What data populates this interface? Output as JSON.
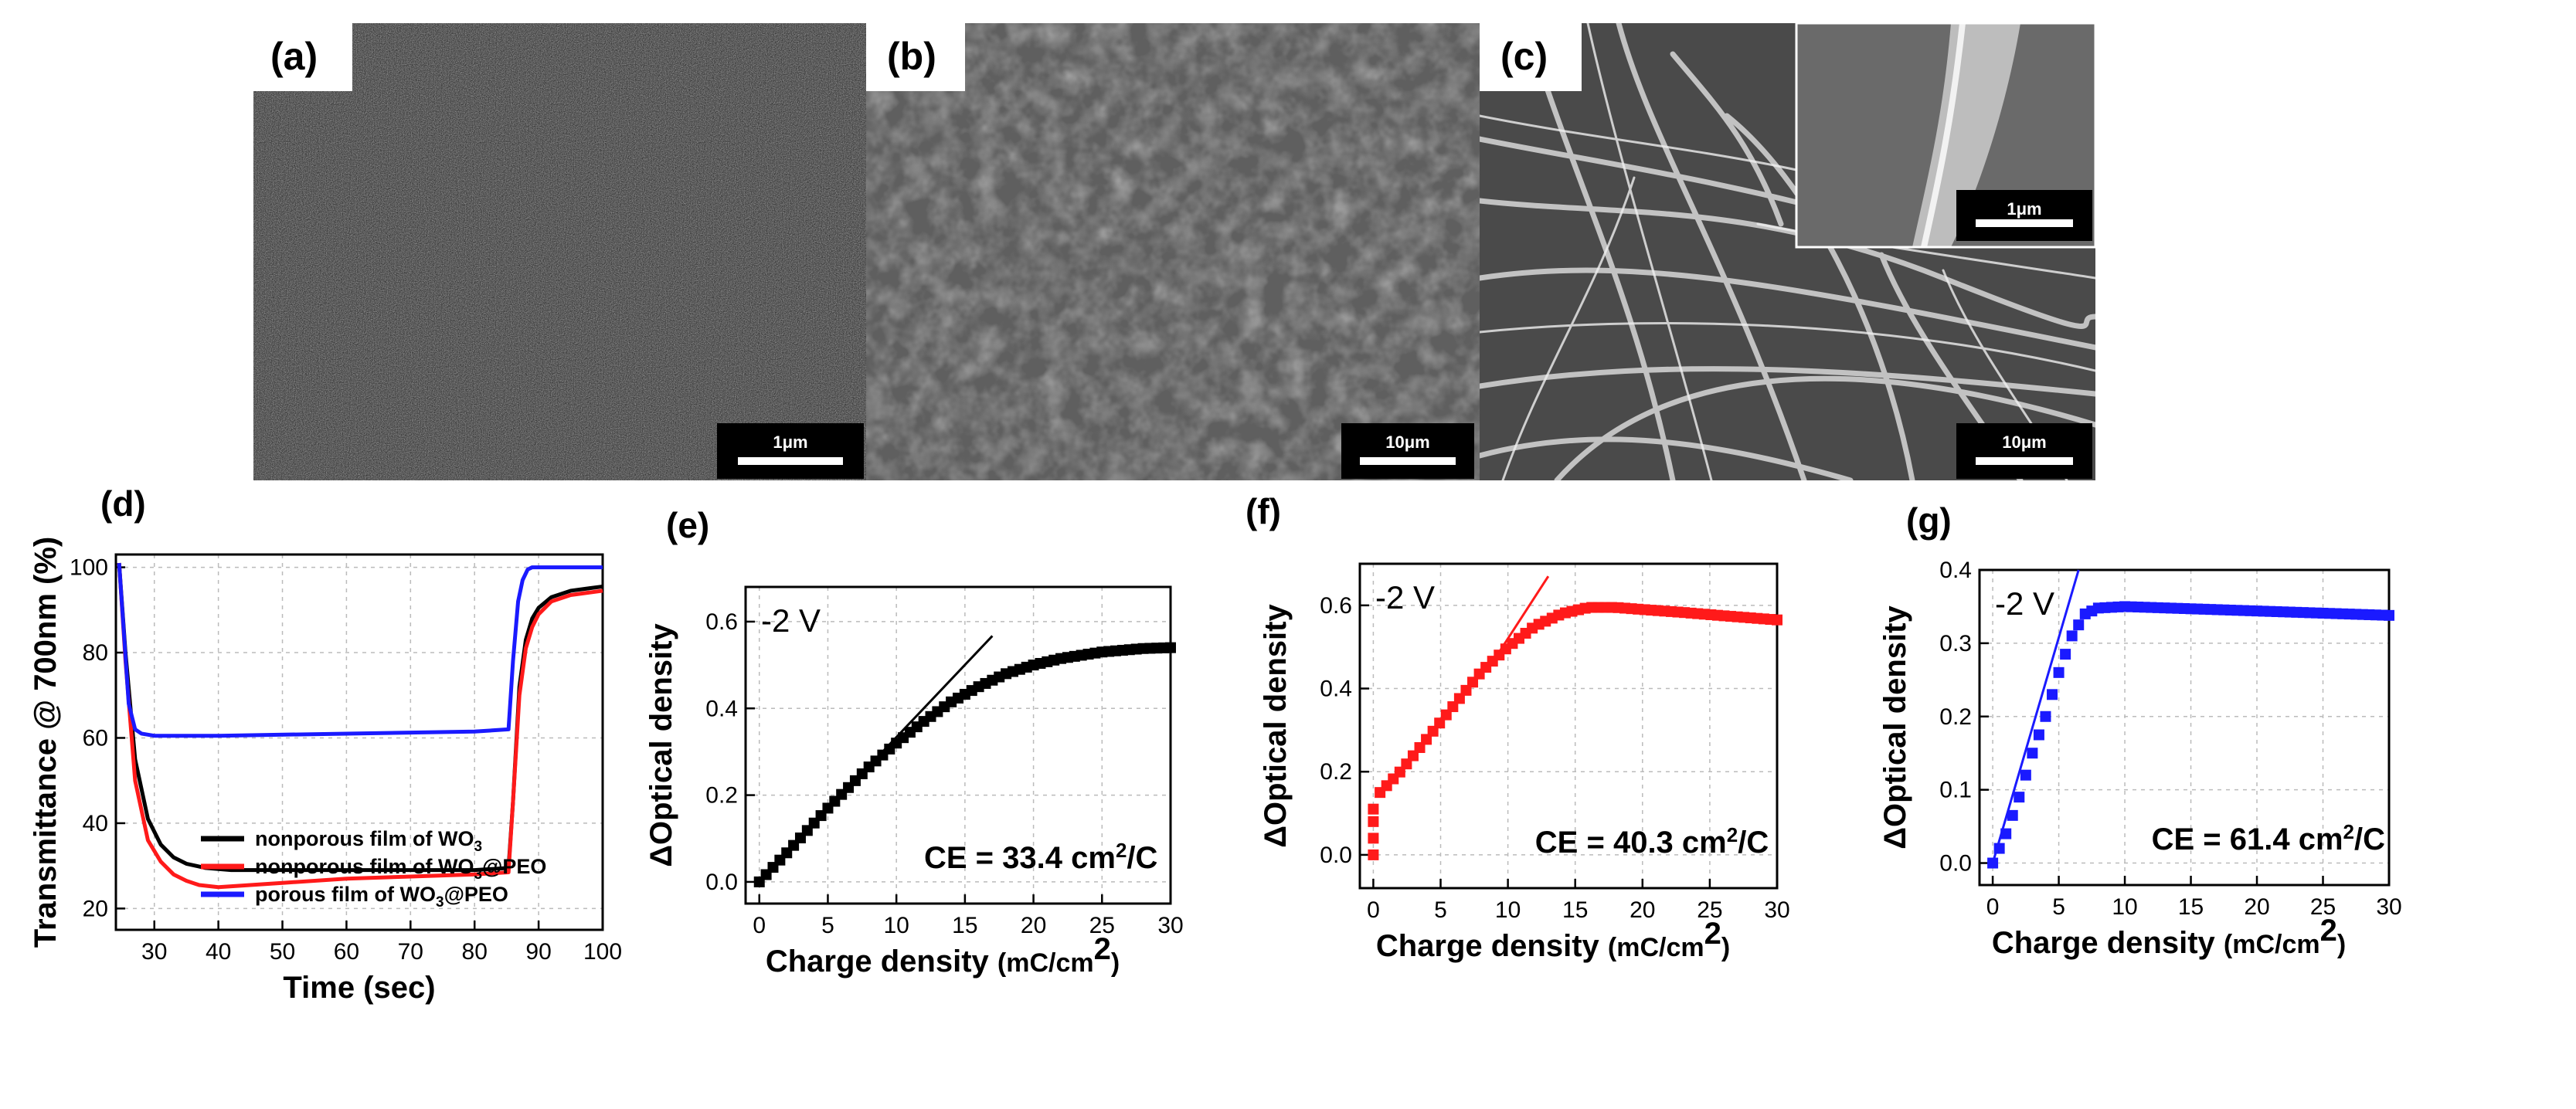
{
  "panels": {
    "a": {
      "label": "(a)",
      "scale": "1μm"
    },
    "b": {
      "label": "(b)",
      "scale": "10μm"
    },
    "c": {
      "label": "(c)",
      "scale": "10μm",
      "inset_scale": "1μm"
    }
  },
  "chart_data": [
    {
      "id": "d",
      "panel_label": "(d)",
      "type": "line",
      "xlabel": "Time (sec)",
      "ylabel": "Transmittance @ 700nm (%)",
      "xlim": [
        24,
        100
      ],
      "ylim": [
        15,
        103
      ],
      "xticks": [
        30,
        40,
        50,
        60,
        70,
        80,
        90,
        100
      ],
      "yticks": [
        20,
        40,
        60,
        80,
        100
      ],
      "grid": true,
      "legend_position": "bottom-center",
      "series": [
        {
          "name": "nonporous film of WO3",
          "color": "#000000",
          "x": [
            24.5,
            25.5,
            27,
            29,
            31,
            33,
            35,
            38,
            42,
            50,
            60,
            70,
            80,
            85.3,
            86,
            87,
            88,
            89,
            90,
            92,
            95,
            100
          ],
          "y": [
            101,
            80,
            55,
            41,
            35,
            32,
            30.5,
            29.5,
            29,
            29,
            29,
            29,
            29,
            29.5,
            45,
            72,
            83,
            88,
            90.5,
            93,
            94.5,
            95.5
          ]
        },
        {
          "name": "nonporous film of WO3@PEO",
          "color": "#ff1a1a",
          "x": [
            24.5,
            25.5,
            27,
            29,
            31,
            33,
            35,
            37,
            40,
            45,
            50,
            60,
            70,
            80,
            85.3,
            86,
            87,
            88,
            89,
            90,
            92,
            95,
            100
          ],
          "y": [
            101,
            78,
            50,
            36,
            31,
            28,
            26.5,
            25.5,
            25,
            25.5,
            26,
            27,
            27.5,
            28,
            28.5,
            45,
            70,
            81,
            86,
            89,
            92,
            93.5,
            94.5
          ]
        },
        {
          "name": "porous film of WO3@PEO",
          "color": "#1a1aff",
          "x": [
            24.5,
            25,
            26,
            27,
            28,
            30,
            40,
            60,
            80,
            85.3,
            86,
            86.8,
            87.5,
            88.3,
            89,
            100
          ],
          "y": [
            101,
            90,
            68,
            62,
            61,
            60.5,
            60.5,
            61,
            61.5,
            62,
            78,
            92,
            97,
            99.5,
            100,
            100
          ]
        }
      ]
    },
    {
      "id": "e",
      "panel_label": "(e)",
      "type": "scatter",
      "xlabel": "Charge density",
      "xlabel_unit": "(mC/cm",
      "ylabel": "ΔOptical density",
      "xlim": [
        -1,
        30
      ],
      "ylim": [
        -0.05,
        0.68
      ],
      "xticks": [
        0,
        5,
        10,
        15,
        20,
        25,
        30
      ],
      "xticklabels": [
        "0",
        "5",
        "10",
        "15",
        "20",
        "25",
        "30"
      ],
      "yticks": [
        0.0,
        0.2,
        0.4,
        0.6
      ],
      "yticklabels": [
        "0.0",
        "0.2",
        "0.4",
        "0.6"
      ],
      "grid": true,
      "annotation_voltage": "-2 V",
      "annotation_ce": "CE = 33.4 cm²/C",
      "marker_color": "#000000",
      "curve": {
        "x": [
          0,
          2,
          5,
          8,
          10,
          12,
          14,
          16,
          18,
          20,
          22,
          25,
          28,
          30
        ],
        "y": [
          0,
          0.067,
          0.17,
          0.265,
          0.32,
          0.37,
          0.415,
          0.45,
          0.48,
          0.5,
          0.515,
          0.53,
          0.538,
          0.54
        ]
      },
      "point_count": 61,
      "fit_line": {
        "x": [
          0,
          17
        ],
        "y": [
          0,
          0.567
        ]
      }
    },
    {
      "id": "f",
      "panel_label": "(f)",
      "type": "scatter",
      "xlabel": "Charge density",
      "xlabel_unit": "(mC/cm",
      "ylabel": "ΔOptical density",
      "xlim": [
        -1,
        30
      ],
      "ylim": [
        -0.08,
        0.7
      ],
      "xticks": [
        0,
        5,
        10,
        15,
        20,
        25,
        30
      ],
      "xticklabels": [
        "0",
        "5",
        "10",
        "15",
        "20",
        "25",
        "30"
      ],
      "yticks": [
        0.0,
        0.2,
        0.4,
        0.6
      ],
      "yticklabels": [
        "0.0",
        "0.2",
        "0.4",
        "0.6"
      ],
      "grid": true,
      "annotation_voltage": "-2 V",
      "annotation_ce": "CE = 40.3 cm²/C",
      "marker_color": "#ff1a1a",
      "jump_points": {
        "x": [
          0,
          0,
          0,
          0
        ],
        "y": [
          0.0,
          0.04,
          0.08,
          0.11
        ]
      },
      "curve": {
        "x": [
          0.5,
          2,
          4,
          6,
          8,
          10,
          12,
          14,
          16,
          18,
          20,
          23,
          26,
          30
        ],
        "y": [
          0.15,
          0.2,
          0.28,
          0.36,
          0.44,
          0.5,
          0.55,
          0.58,
          0.595,
          0.595,
          0.59,
          0.583,
          0.575,
          0.565
        ]
      },
      "point_count": 61,
      "fit_line": {
        "x": [
          9,
          13
        ],
        "y": [
          0.47,
          0.67
        ]
      }
    },
    {
      "id": "g",
      "panel_label": "(g)",
      "type": "scatter",
      "xlabel": "Charge density",
      "xlabel_unit": "(mC/cm",
      "ylabel": "ΔOptical density",
      "xlim": [
        -1,
        30
      ],
      "ylim": [
        -0.03,
        0.4
      ],
      "xticks": [
        0,
        5,
        10,
        15,
        20,
        25,
        30
      ],
      "xticklabels": [
        "0",
        "5",
        "10",
        "15",
        "20",
        "25",
        "30"
      ],
      "yticks": [
        0.0,
        0.1,
        0.2,
        0.3,
        0.4
      ],
      "yticklabels": [
        "0.0",
        "0.1",
        "0.2",
        "0.3",
        "0.4"
      ],
      "grid": true,
      "annotation_voltage": "-2 V",
      "annotation_ce": "CE = 61.4 cm²/C",
      "marker_color": "#1a1aff",
      "curve": {
        "x": [
          0,
          1,
          2,
          3,
          4,
          5,
          6,
          7,
          8,
          10,
          15,
          20,
          25,
          30
        ],
        "y": [
          0,
          0.04,
          0.09,
          0.15,
          0.2,
          0.26,
          0.31,
          0.34,
          0.348,
          0.35,
          0.347,
          0.344,
          0.341,
          0.338
        ]
      },
      "point_count": 61,
      "fit_line": {
        "x": [
          0,
          6.5
        ],
        "y": [
          0,
          0.4
        ]
      }
    }
  ]
}
